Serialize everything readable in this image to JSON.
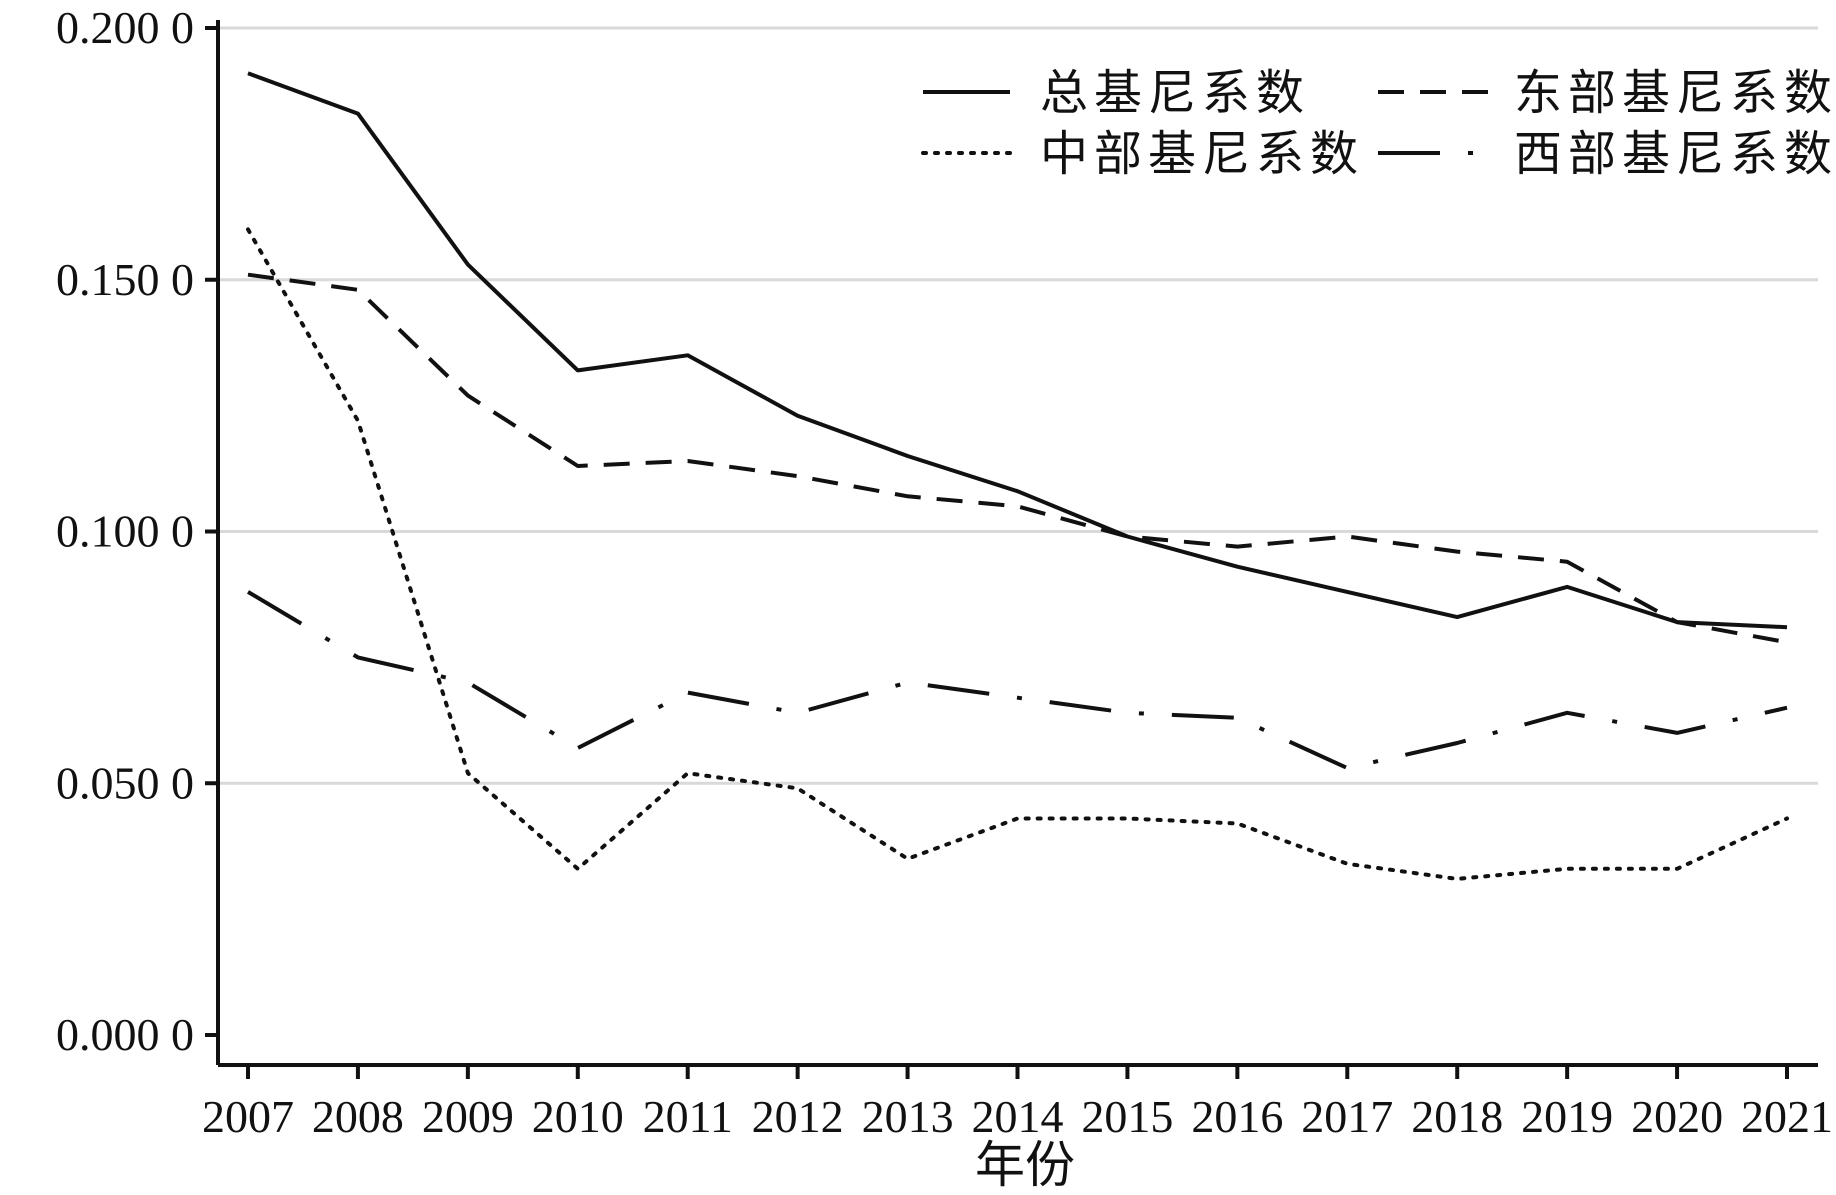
{
  "chart_data": {
    "type": "line",
    "title": "",
    "xlabel": "年份",
    "ylabel": "",
    "x": [
      2007,
      2008,
      2009,
      2010,
      2011,
      2012,
      2013,
      2014,
      2015,
      2016,
      2017,
      2018,
      2019,
      2020,
      2021
    ],
    "x_tick_labels": [
      "2007",
      "2008",
      "2009",
      "2010",
      "2011",
      "2012",
      "2013",
      "2014",
      "2015",
      "2016",
      "2017",
      "2018",
      "2019",
      "2020",
      "2021"
    ],
    "ylim": [
      0,
      0.2
    ],
    "y_ticks": [
      0,
      0.05,
      0.1,
      0.15,
      0.2
    ],
    "y_tick_labels": [
      "0.000 0",
      "0.050 0",
      "0.100 0",
      "0.150 0",
      "0.200 0"
    ],
    "grid": "horizontal",
    "legend_position": "top-right",
    "series": [
      {
        "name": "总基尼系数",
        "style": "solid",
        "values": [
          0.191,
          0.183,
          0.153,
          0.132,
          0.135,
          0.123,
          0.115,
          0.108,
          0.099,
          0.093,
          0.088,
          0.083,
          0.089,
          0.082,
          0.081
        ]
      },
      {
        "name": "东部基尼系数",
        "style": "dashed",
        "values": [
          0.151,
          0.148,
          0.127,
          0.113,
          0.114,
          0.111,
          0.107,
          0.105,
          0.099,
          0.097,
          0.099,
          0.096,
          0.094,
          0.082,
          0.078
        ]
      },
      {
        "name": "中部基尼系数",
        "style": "dotted",
        "values": [
          0.16,
          0.122,
          0.052,
          0.033,
          0.052,
          0.049,
          0.035,
          0.043,
          0.043,
          0.042,
          0.034,
          0.031,
          0.033,
          0.033,
          0.043
        ]
      },
      {
        "name": "西部基尼系数",
        "style": "longdash-dot",
        "values": [
          0.088,
          0.075,
          0.07,
          0.057,
          0.068,
          0.064,
          0.07,
          0.067,
          0.064,
          0.063,
          0.053,
          0.058,
          0.064,
          0.06,
          0.065
        ]
      }
    ],
    "colors": {
      "line": "#111111",
      "grid": "#d9d9d9",
      "axis": "#111111"
    }
  }
}
